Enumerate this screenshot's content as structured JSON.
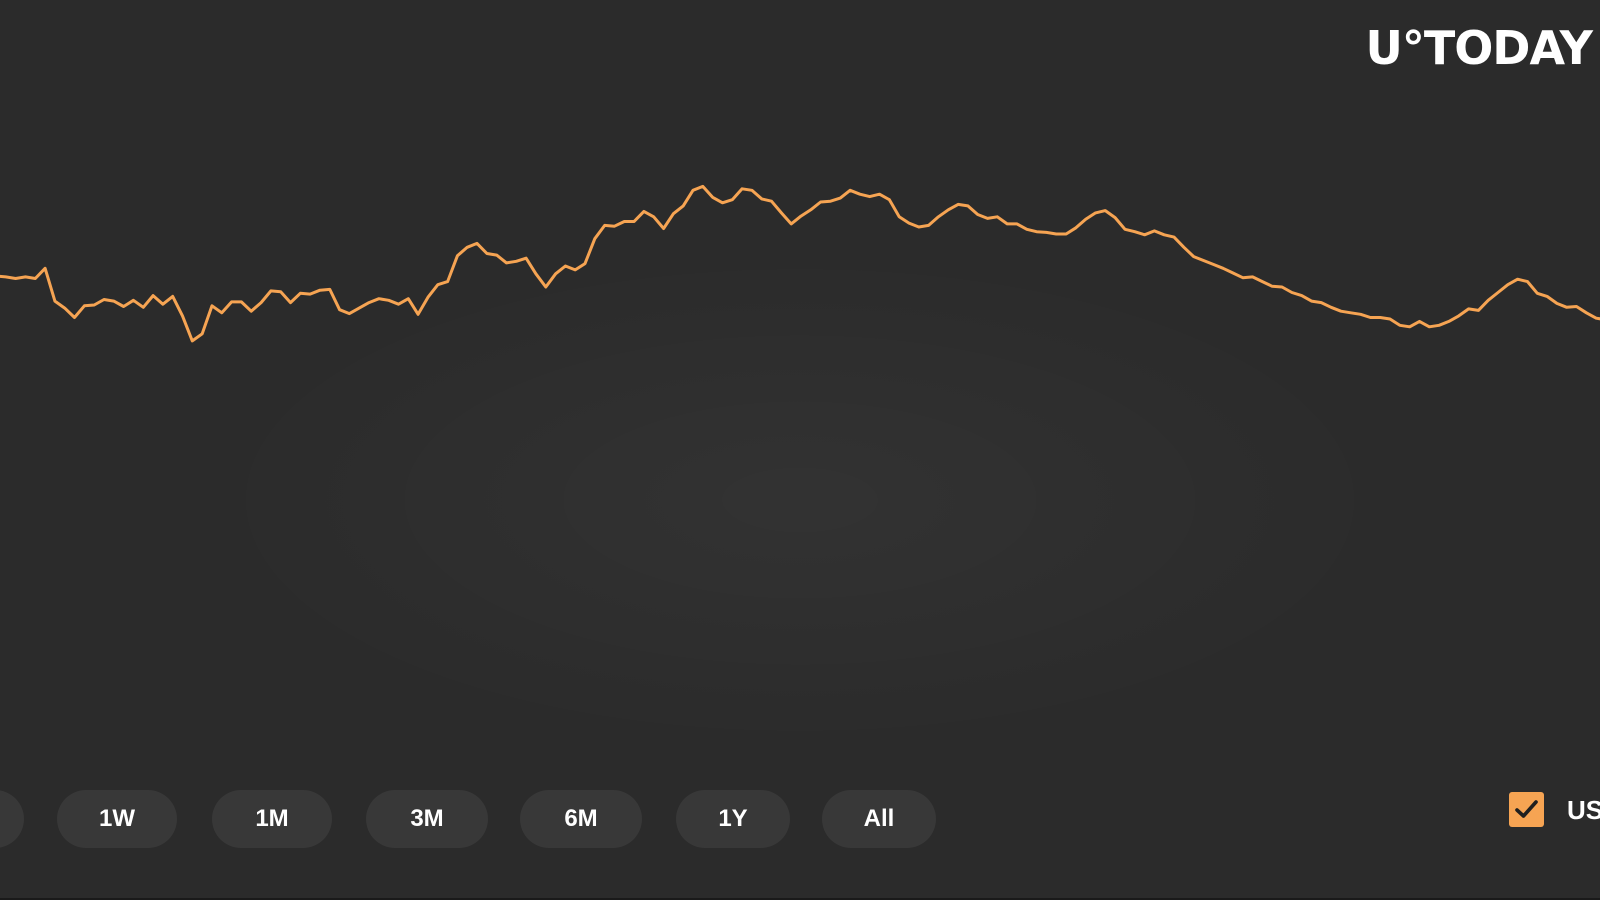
{
  "logo": "U°TODAY",
  "range_buttons": [
    "",
    "1W",
    "1M",
    "3M",
    "6M",
    "1Y",
    "All"
  ],
  "toggle": {
    "label": "US",
    "checked": true
  },
  "colors": {
    "background": "#2b2b2b",
    "line": "#f6a453",
    "button_bg": "#383838",
    "text": "#ffffff"
  },
  "chart_data": {
    "type": "line",
    "title": "",
    "xlabel": "",
    "ylabel": "",
    "grid": false,
    "ylim": [
      0,
      100
    ],
    "series": [
      {
        "values": [
          64.6,
          64.5,
          64.3,
          64.5,
          64.3,
          65.6,
          61.4,
          60.5,
          59.3,
          60.8,
          60.9,
          61.6,
          61.4,
          60.7,
          61.5,
          60.6,
          62.1,
          61.0,
          62.0,
          59.5,
          56.3,
          57.2,
          60.8,
          59.9,
          61.3,
          61.3,
          60.1,
          61.2,
          62.7,
          62.6,
          61.2,
          62.4,
          62.3,
          62.8,
          62.9,
          60.3,
          59.8,
          60.5,
          61.2,
          61.7,
          61.5,
          61.0,
          61.7,
          59.7,
          61.9,
          63.5,
          63.9,
          67.2,
          68.3,
          68.8,
          67.5,
          67.3,
          66.3,
          66.5,
          66.9,
          64.9,
          63.2,
          64.9,
          65.9,
          65.4,
          66.2,
          69.4,
          71.1,
          71.0,
          71.6,
          71.6,
          72.9,
          72.2,
          70.7,
          72.6,
          73.6,
          75.6,
          76.1,
          74.7,
          74.0,
          74.4,
          75.8,
          75.6,
          74.5,
          74.2,
          72.7,
          71.3,
          72.3,
          73.1,
          74.1,
          74.2,
          74.6,
          75.6,
          75.1,
          74.8,
          75.1,
          74.4,
          72.2,
          71.4,
          70.9,
          71.1,
          72.2,
          73.1,
          73.8,
          73.6,
          72.5,
          72.0,
          72.2,
          71.3,
          71.3,
          70.6,
          70.3,
          70.2,
          70.0,
          70.0,
          70.8,
          71.9,
          72.7,
          73.0,
          72.1,
          70.6,
          70.3,
          69.9,
          70.4,
          69.9,
          69.6,
          68.3,
          67.1,
          66.6,
          66.1,
          65.6,
          65.0,
          64.4,
          64.5,
          63.9,
          63.3,
          63.2,
          62.5,
          62.1,
          61.4,
          61.2,
          60.6,
          60.1,
          59.9,
          59.7,
          59.3,
          59.3,
          59.1,
          58.3,
          58.1,
          58.8,
          58.1,
          58.3,
          58.8,
          59.5,
          60.4,
          60.2,
          61.5,
          62.5,
          63.5,
          64.2,
          63.9,
          62.4,
          62.0,
          61.1,
          60.6,
          60.7,
          59.9,
          59.2,
          59.0
        ]
      }
    ]
  }
}
